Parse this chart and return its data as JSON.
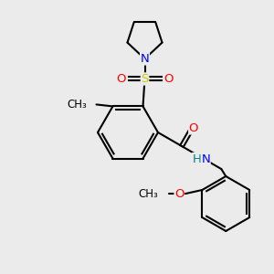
{
  "bg_color": "#ebebeb",
  "bond_color": "black",
  "bond_width": 1.5,
  "atom_colors": {
    "C": "black",
    "N": "blue",
    "O": "red",
    "S": "#cccc00",
    "H": "#008080"
  },
  "font_size": 9.5,
  "font_size_small": 8.5
}
